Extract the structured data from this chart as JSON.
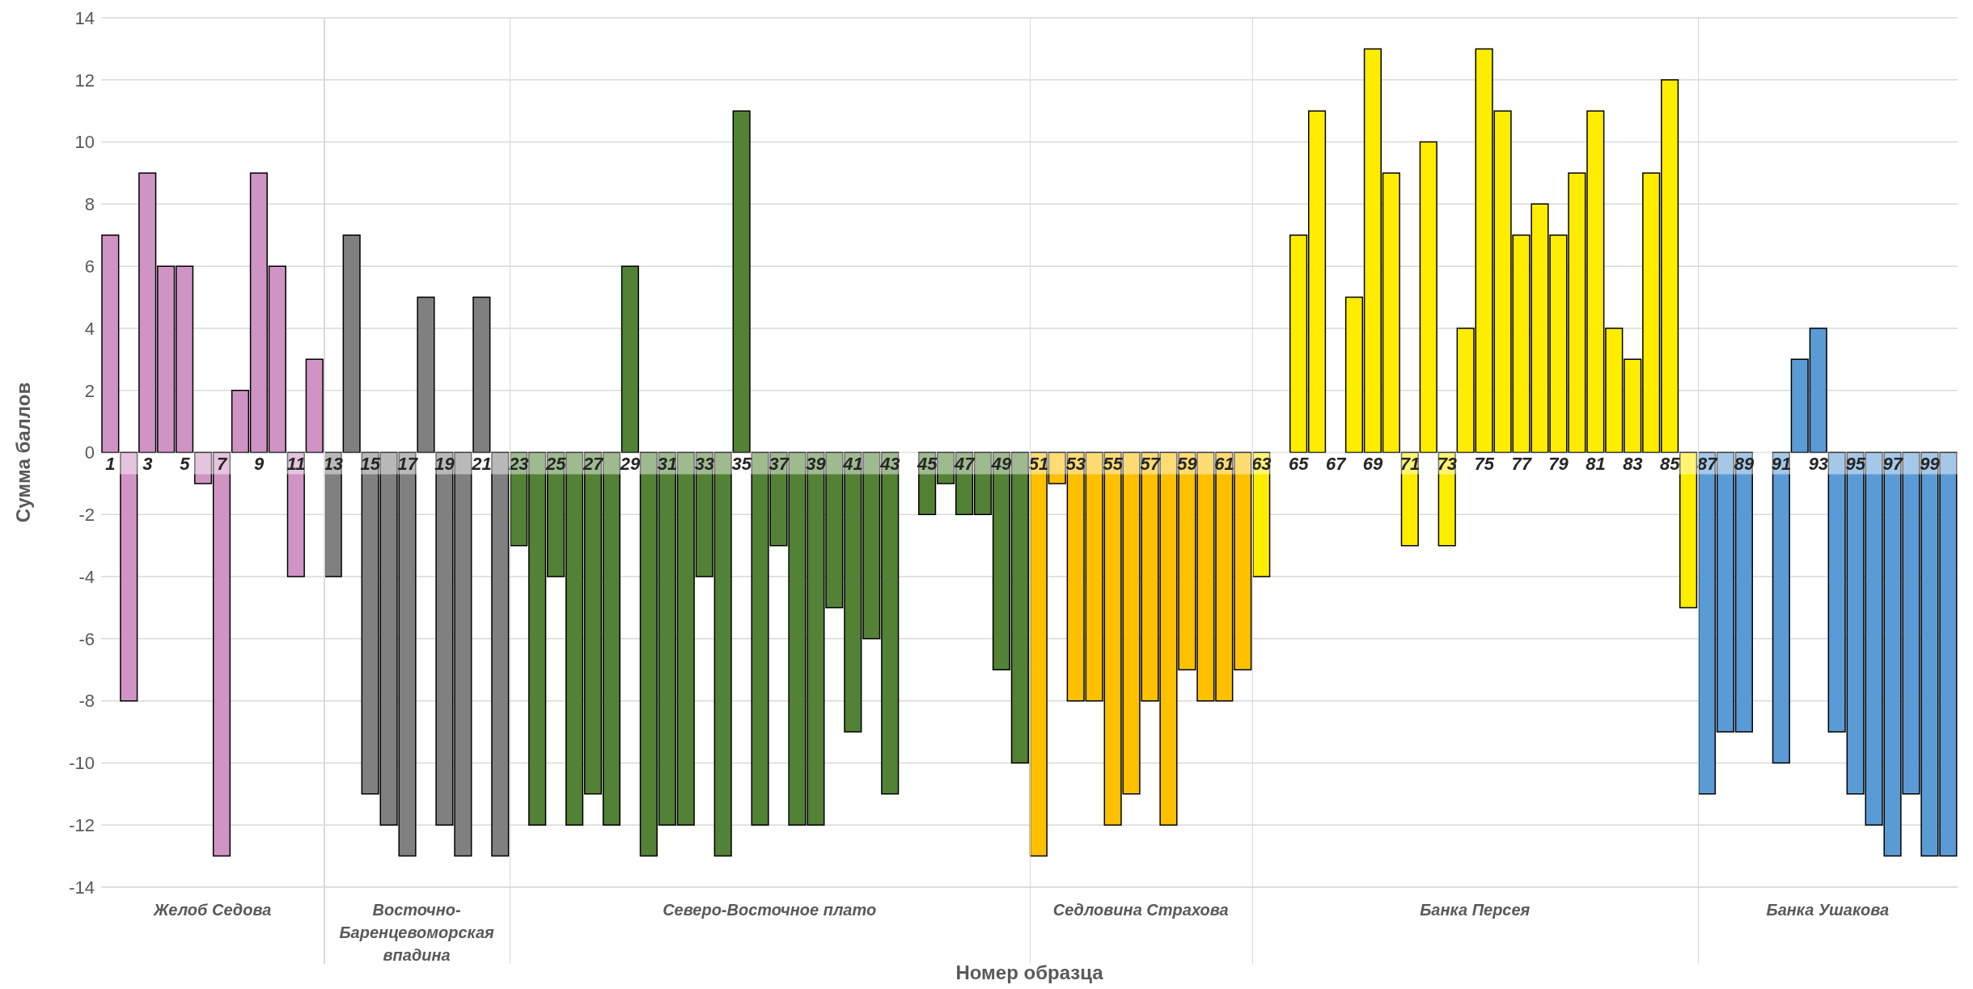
{
  "chart_data": {
    "type": "bar",
    "xlabel": "Номер образца",
    "ylabel": "Сумма баллов",
    "x": [
      1,
      2,
      3,
      4,
      5,
      6,
      7,
      8,
      9,
      10,
      11,
      12,
      13,
      14,
      15,
      16,
      17,
      18,
      19,
      20,
      21,
      22,
      23,
      24,
      25,
      26,
      27,
      28,
      29,
      30,
      31,
      32,
      33,
      34,
      35,
      36,
      37,
      38,
      39,
      40,
      41,
      42,
      43,
      44,
      45,
      46,
      47,
      48,
      49,
      50,
      51,
      52,
      53,
      54,
      55,
      56,
      57,
      58,
      59,
      60,
      61,
      62,
      63,
      64,
      65,
      66,
      67,
      68,
      69,
      70,
      71,
      72,
      73,
      74,
      75,
      76,
      77,
      78,
      79,
      80,
      81,
      82,
      83,
      84,
      85,
      86,
      87,
      88,
      89,
      90,
      91,
      92,
      93,
      94,
      95,
      96,
      97,
      98,
      99,
      100
    ],
    "values": [
      7,
      -8,
      9,
      6,
      6,
      -1,
      -13,
      2,
      9,
      6,
      -4,
      3,
      -4,
      7,
      -11,
      -12,
      -13,
      5,
      -12,
      -13,
      5,
      -13,
      -3,
      -12,
      -4,
      -12,
      -11,
      -12,
      6,
      -13,
      -12,
      -12,
      -4,
      -13,
      11,
      -12,
      -3,
      -12,
      -12,
      -5,
      -9,
      -6,
      -11,
      0,
      -2,
      -1,
      -2,
      -2,
      -7,
      -10,
      -13,
      -1,
      -8,
      -8,
      -12,
      -11,
      -8,
      -12,
      -7,
      -8,
      -8,
      -7,
      -4,
      0,
      7,
      11,
      0,
      5,
      13,
      9,
      -3,
      10,
      -3,
      4,
      13,
      11,
      7,
      8,
      7,
      9,
      11,
      4,
      3,
      9,
      12,
      -5,
      -11,
      -9,
      -9,
      0,
      -10,
      3,
      4,
      -9,
      -11,
      -12,
      -13,
      -11,
      -13,
      -13
    ],
    "colors": [
      "#d094c4",
      "#d094c4",
      "#d094c4",
      "#d094c4",
      "#d094c4",
      "#d094c4",
      "#d094c4",
      "#d094c4",
      "#d094c4",
      "#d094c4",
      "#d094c4",
      "#d094c4",
      "#808080",
      "#808080",
      "#808080",
      "#808080",
      "#808080",
      "#808080",
      "#808080",
      "#808080",
      "#808080",
      "#808080",
      "#538135",
      "#538135",
      "#538135",
      "#538135",
      "#538135",
      "#538135",
      "#538135",
      "#538135",
      "#538135",
      "#538135",
      "#538135",
      "#538135",
      "#538135",
      "#538135",
      "#538135",
      "#538135",
      "#538135",
      "#538135",
      "#538135",
      "#538135",
      "#538135",
      "#538135",
      "#538135",
      "#538135",
      "#538135",
      "#538135",
      "#538135",
      "#538135",
      "#ffc000",
      "#ffc000",
      "#ffc000",
      "#ffc000",
      "#ffc000",
      "#ffc000",
      "#ffc000",
      "#ffc000",
      "#ffc000",
      "#ffc000",
      "#ffc000",
      "#ffc000",
      "#ffed00",
      "#ffed00",
      "#ffed00",
      "#ffed00",
      "#ffed00",
      "#ffed00",
      "#ffed00",
      "#ffed00",
      "#ffed00",
      "#ffed00",
      "#ffed00",
      "#ffed00",
      "#ffed00",
      "#ffed00",
      "#ffed00",
      "#ffed00",
      "#ffed00",
      "#ffed00",
      "#ffed00",
      "#ffed00",
      "#ffed00",
      "#ffed00",
      "#ffed00",
      "#ffed00",
      "#5b9bd5",
      "#5b9bd5",
      "#5b9bd5",
      "#5b9bd5",
      "#5b9bd5",
      "#5b9bd5",
      "#5b9bd5",
      "#5b9bd5",
      "#5b9bd5",
      "#5b9bd5",
      "#5b9bd5",
      "#5b9bd5",
      "#5b9bd5",
      "#5b9bd5"
    ],
    "xlim": [
      0.5,
      100.5
    ],
    "xticks": [
      1,
      3,
      5,
      7,
      9,
      11,
      13,
      15,
      17,
      19,
      21,
      23,
      25,
      27,
      29,
      31,
      33,
      35,
      37,
      39,
      41,
      43,
      45,
      47,
      49,
      51,
      53,
      55,
      57,
      59,
      61,
      63,
      65,
      67,
      69,
      71,
      73,
      75,
      77,
      79,
      81,
      83,
      85,
      87,
      89,
      91,
      93,
      95,
      97,
      99
    ],
    "ylim": [
      -14,
      14
    ],
    "yticks": [
      -14,
      -12,
      -10,
      -8,
      -6,
      -4,
      -2,
      0,
      2,
      4,
      6,
      8,
      10,
      12,
      14
    ],
    "grid": "y",
    "ref_lines": [
      {
        "axis": "x",
        "value": 12.5,
        "color": "#d9d9d9"
      },
      {
        "axis": "x",
        "value": 22.5,
        "color": "#d9d9d9"
      },
      {
        "axis": "x",
        "value": 50.5,
        "color": "#d9d9d9"
      },
      {
        "axis": "x",
        "value": 62.5,
        "color": "#d9d9d9"
      },
      {
        "axis": "x",
        "value": 86.5,
        "color": "#d9d9d9"
      }
    ],
    "annotations": [
      "Желоб Седова",
      "Восточно-Баренцевоморская впадина",
      "Северо-Восточное плато",
      "Седловина Страхова",
      "Банка Персея",
      "Банка Ушакова"
    ]
  }
}
